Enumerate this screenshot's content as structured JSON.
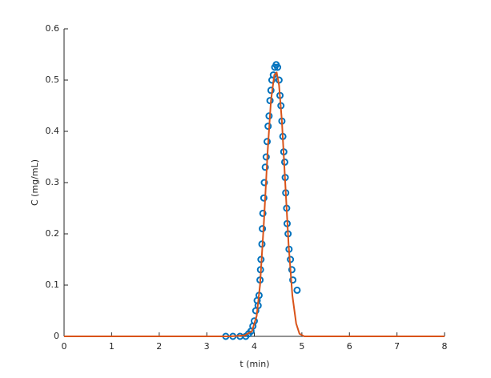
{
  "chart_data": {
    "type": "line",
    "xlabel": "t (min)",
    "ylabel": "C (mg/mL)",
    "xlim": [
      0,
      8
    ],
    "xticks": [
      0,
      1,
      2,
      3,
      4,
      5,
      6,
      7,
      8
    ],
    "ylim": [
      0,
      0.6
    ],
    "yticks": [
      0,
      0.1,
      0.2,
      0.3,
      0.4,
      0.5,
      0.6
    ],
    "grid": false,
    "series": [
      {
        "style": "markers",
        "color": "#0072bd",
        "x": [
          3.4,
          3.55,
          3.7,
          3.82,
          3.88,
          3.93,
          3.97,
          4.0,
          4.03,
          4.06,
          4.08,
          4.1,
          4.12,
          4.13,
          4.14,
          4.16,
          4.17,
          4.18,
          4.2,
          4.21,
          4.23,
          4.25,
          4.27,
          4.29,
          4.31,
          4.33,
          4.35,
          4.37,
          4.4,
          4.43,
          4.46,
          4.49,
          4.52,
          4.54,
          4.56,
          4.58,
          4.6,
          4.62,
          4.64,
          4.65,
          4.66,
          4.68,
          4.69,
          4.71,
          4.73,
          4.76,
          4.79,
          4.81,
          4.9
        ],
        "values": [
          0,
          0,
          0,
          0,
          0.005,
          0.01,
          0.02,
          0.03,
          0.05,
          0.07,
          0.06,
          0.08,
          0.11,
          0.13,
          0.15,
          0.18,
          0.21,
          0.24,
          0.27,
          0.3,
          0.33,
          0.35,
          0.38,
          0.41,
          0.43,
          0.46,
          0.48,
          0.5,
          0.51,
          0.525,
          0.53,
          0.525,
          0.5,
          0.47,
          0.45,
          0.42,
          0.39,
          0.36,
          0.34,
          0.31,
          0.28,
          0.25,
          0.22,
          0.2,
          0.17,
          0.15,
          0.13,
          0.11,
          0.09
        ]
      },
      {
        "style": "line",
        "color": "#d95319",
        "x": [
          0,
          3.5,
          3.8,
          3.95,
          4.05,
          4.12,
          4.2,
          4.28,
          4.35,
          4.42,
          4.47,
          4.52,
          4.58,
          4.65,
          4.72,
          4.8,
          4.88,
          4.95,
          5.05,
          8
        ],
        "values": [
          0,
          0,
          0.002,
          0.01,
          0.04,
          0.1,
          0.22,
          0.36,
          0.46,
          0.51,
          0.515,
          0.49,
          0.42,
          0.3,
          0.18,
          0.08,
          0.025,
          0.005,
          0,
          0
        ]
      }
    ]
  }
}
